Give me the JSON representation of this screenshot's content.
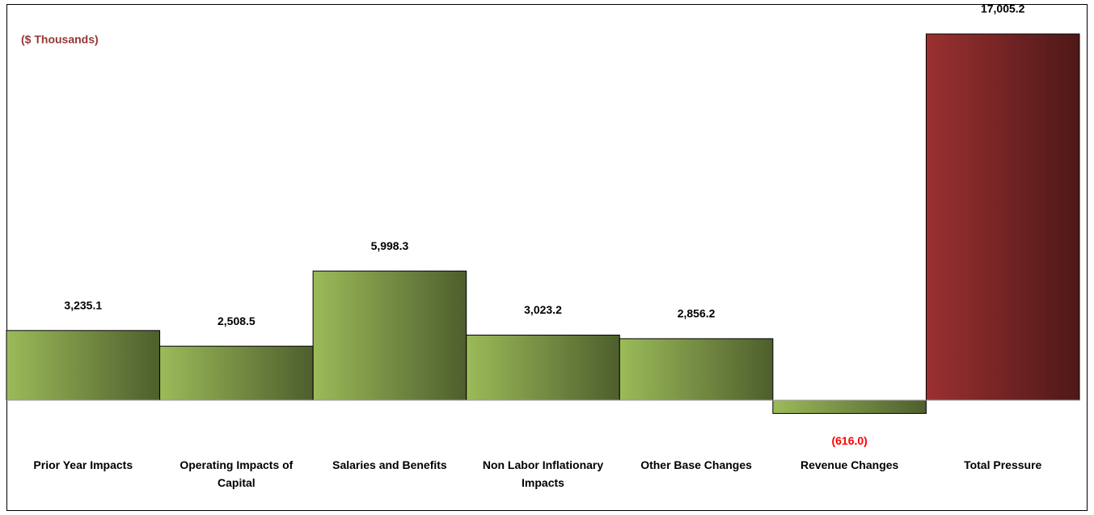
{
  "chart_data": {
    "type": "bar",
    "subtitle": "($ Thousands)",
    "categories": [
      "Prior Year Impacts",
      "Operating Impacts of Capital",
      "Salaries and Benefits",
      "Non Labor Inflationary Impacts",
      "Other Base Changes",
      "Revenue Changes",
      "Total Pressure"
    ],
    "values": [
      3235.1,
      2508.5,
      5998.3,
      3023.2,
      2856.2,
      -616.0,
      17005.2
    ],
    "value_labels": [
      "3,235.1",
      "2,508.5",
      "5,998.3",
      "3,023.2",
      "2,856.2",
      "(616.0)",
      "17,005.2"
    ],
    "colors": [
      "#9bbb59",
      "#9bbb59",
      "#9bbb59",
      "#9bbb59",
      "#9bbb59",
      "#9bbb59",
      "#9b3030"
    ],
    "negative_label_color": "#ff0000"
  }
}
